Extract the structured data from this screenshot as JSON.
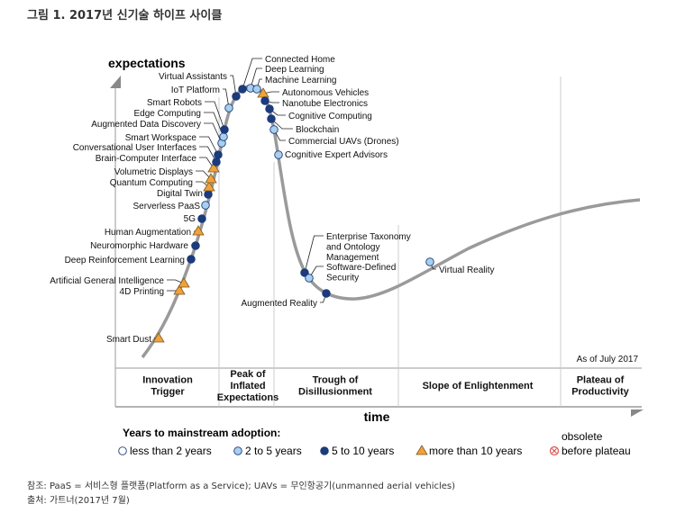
{
  "title": "그림 1. 2017년 신기술 하이프 사이클",
  "y_axis_label": "expectations",
  "x_axis_label": "time",
  "as_of": "As of July 2017",
  "phases": [
    [
      "Innovation",
      "Trigger"
    ],
    [
      "Peak of",
      "Inflated",
      "Expectations"
    ],
    [
      "Trough of",
      "Disillusionment"
    ],
    [
      "Slope of Enlightenment"
    ],
    [
      "Plateau of",
      "Productivity"
    ]
  ],
  "legend": {
    "title": "Years to mainstream adoption:",
    "items": [
      {
        "type": "white",
        "label": "less than 2 years"
      },
      {
        "type": "light",
        "label": "2 to 5 years"
      },
      {
        "type": "dark",
        "label": "5 to 10 years"
      },
      {
        "type": "triangle",
        "label": "more than 10 years"
      },
      {
        "type": "obsolete",
        "label": [
          "obsolete",
          "before plateau"
        ]
      }
    ]
  },
  "colors": {
    "light": "#a9cfee",
    "dark": "#1b3b7c",
    "triangle": "#f0a23a",
    "curve": "#9a9a9a",
    "obsolete": "#d9534f"
  },
  "technologies": [
    {
      "name": "Smart Dust",
      "type": "triangle"
    },
    {
      "name": "4D Printing",
      "type": "triangle"
    },
    {
      "name": "Artificial General Intelligence",
      "type": "triangle"
    },
    {
      "name": "Deep Reinforcement Learning",
      "type": "dark"
    },
    {
      "name": "Neuromorphic Hardware",
      "type": "dark"
    },
    {
      "name": "Human Augmentation",
      "type": "triangle"
    },
    {
      "name": "5G",
      "type": "dark"
    },
    {
      "name": "Serverless PaaS",
      "type": "light"
    },
    {
      "name": "Digital Twin",
      "type": "dark"
    },
    {
      "name": "Quantum Computing",
      "type": "triangle"
    },
    {
      "name": "Volumetric Displays",
      "type": "triangle"
    },
    {
      "name": "Brain-Computer Interface",
      "type": "triangle"
    },
    {
      "name": "Conversational User Interfaces",
      "type": "dark"
    },
    {
      "name": "Smart Workspace",
      "type": "dark"
    },
    {
      "name": "Augmented Data Discovery",
      "type": "light"
    },
    {
      "name": "Edge Computing",
      "type": "light"
    },
    {
      "name": "Smart Robots",
      "type": "dark"
    },
    {
      "name": "IoT Platform",
      "type": "light"
    },
    {
      "name": "Virtual Assistants",
      "type": "dark"
    },
    {
      "name": "Connected Home",
      "type": "dark"
    },
    {
      "name": "Deep Learning",
      "type": "light"
    },
    {
      "name": "Machine Learning",
      "type": "light"
    },
    {
      "name": "Autonomous Vehicles",
      "type": "triangle"
    },
    {
      "name": "Nanotube Electronics",
      "type": "dark"
    },
    {
      "name": "Cognitive Computing",
      "type": "dark"
    },
    {
      "name": "Blockchain",
      "type": "dark"
    },
    {
      "name": "Commercial UAVs (Drones)",
      "type": "light"
    },
    {
      "name": "Cognitive Expert Advisors",
      "type": "light"
    },
    {
      "name": [
        "Enterprise Taxonomy",
        "and Ontology",
        "Management"
      ],
      "type": "dark"
    },
    {
      "name": [
        "Software-Defined",
        "Security"
      ],
      "type": "light"
    },
    {
      "name": "Augmented Reality",
      "type": "dark"
    },
    {
      "name": "Virtual Reality",
      "type": "light"
    }
  ],
  "footer": {
    "note": "참조: PaaS = 서비스형 플랫폼(Platform as a Service); UAVs = 무인항공기(unmanned aerial vehicles)",
    "source": "출처: 가트너(2017년 7월)"
  }
}
